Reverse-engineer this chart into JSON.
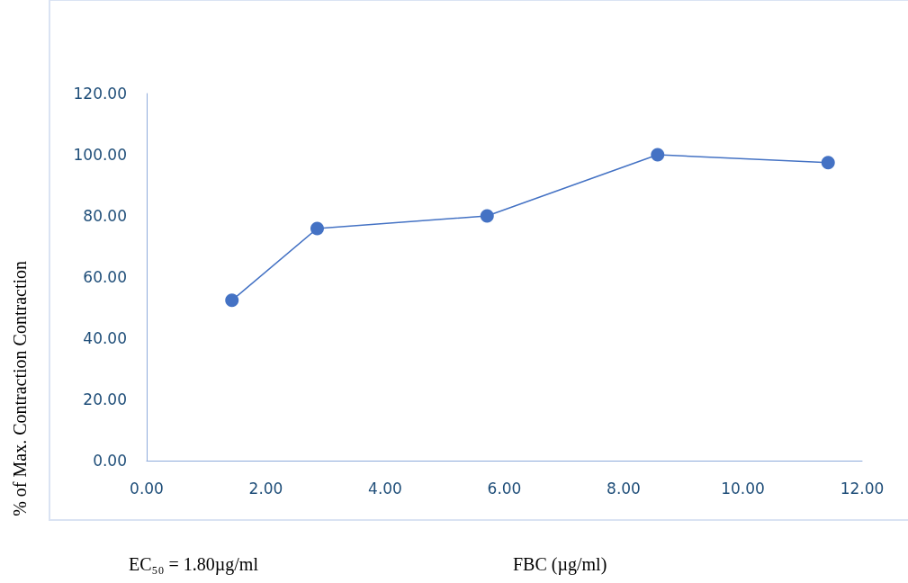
{
  "chart_data": {
    "type": "line",
    "xlabel": "FBC (µg/ml)",
    "ylabel": "% of Max. Contraction Contraction",
    "annotations": [
      "EC₅₀ = 1.80µg/ml"
    ],
    "x": [
      1.43,
      2.86,
      5.71,
      8.57,
      11.43
    ],
    "series": [
      {
        "color": "#4472c4",
        "values": [
          52.4,
          75.9,
          80.0,
          100.0,
          97.4
        ]
      }
    ],
    "xlim": [
      0,
      12
    ],
    "xticks": [
      {
        "value": 0,
        "label": "0.00"
      },
      {
        "value": 2,
        "label": "2.00"
      },
      {
        "value": 4,
        "label": "4.00"
      },
      {
        "value": 6,
        "label": "6.00"
      },
      {
        "value": 8,
        "label": "8.00"
      },
      {
        "value": 10,
        "label": "10.00"
      },
      {
        "value": 12,
        "label": "12.00"
      }
    ],
    "ylim": [
      0,
      120
    ],
    "yticks": [
      {
        "value": 0,
        "label": "0.00"
      },
      {
        "value": 20,
        "label": "20.00"
      },
      {
        "value": 40,
        "label": "40.00"
      },
      {
        "value": 60,
        "label": "60.00"
      },
      {
        "value": 80,
        "label": "80.00"
      },
      {
        "value": 100,
        "label": "100.00"
      },
      {
        "value": 120,
        "label": "120.00"
      }
    ],
    "grid": false,
    "marker": "circle",
    "line_style": "solid"
  }
}
